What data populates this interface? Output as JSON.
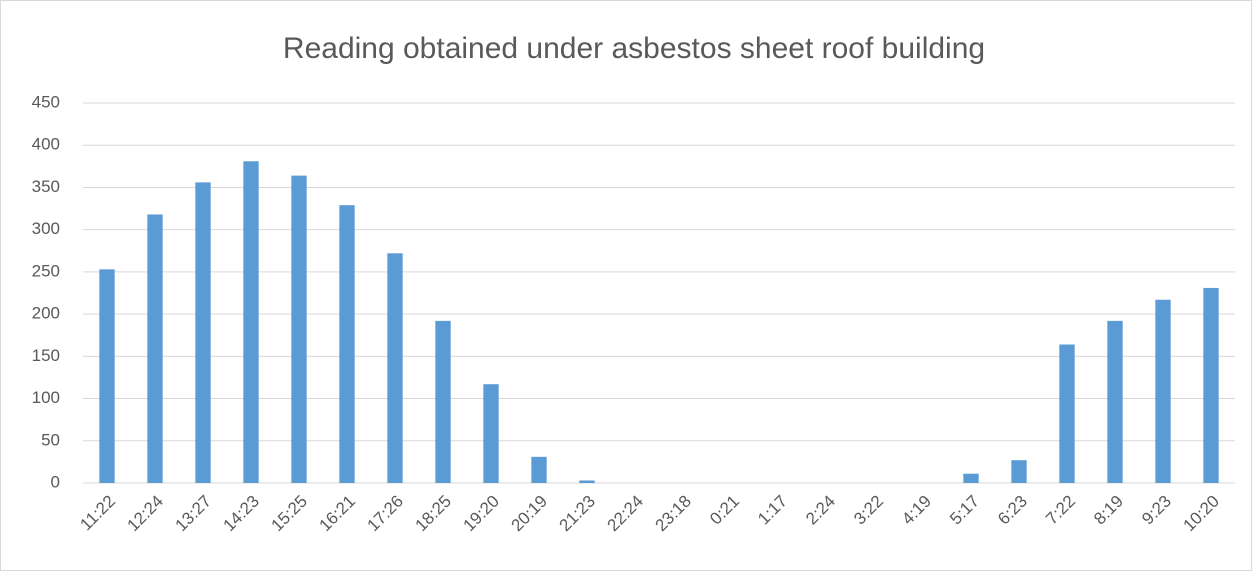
{
  "chart_data": {
    "type": "bar",
    "title": "Reading obtained under asbestos sheet roof building",
    "categories": [
      "11:22",
      "12:24",
      "13:27",
      "14:23",
      "15:25",
      "16:21",
      "17:26",
      "18:25",
      "19:20",
      "20:19",
      "21:23",
      "22:24",
      "23:18",
      "0:21",
      "1:17",
      "2:24",
      "3:22",
      "4:19",
      "5:17",
      "6:23",
      "7:22",
      "8:19",
      "9:23",
      "10:20"
    ],
    "values": [
      253,
      318,
      356,
      381,
      364,
      329,
      272,
      192,
      117,
      31,
      3,
      0,
      0,
      0,
      0,
      0,
      0,
      0,
      11,
      27,
      164,
      192,
      217,
      231
    ],
    "color": "#5b9bd5",
    "ylim": [
      0,
      450
    ],
    "yticks": [
      0,
      50,
      100,
      150,
      200,
      250,
      300,
      350,
      400,
      450
    ],
    "grid": true
  }
}
